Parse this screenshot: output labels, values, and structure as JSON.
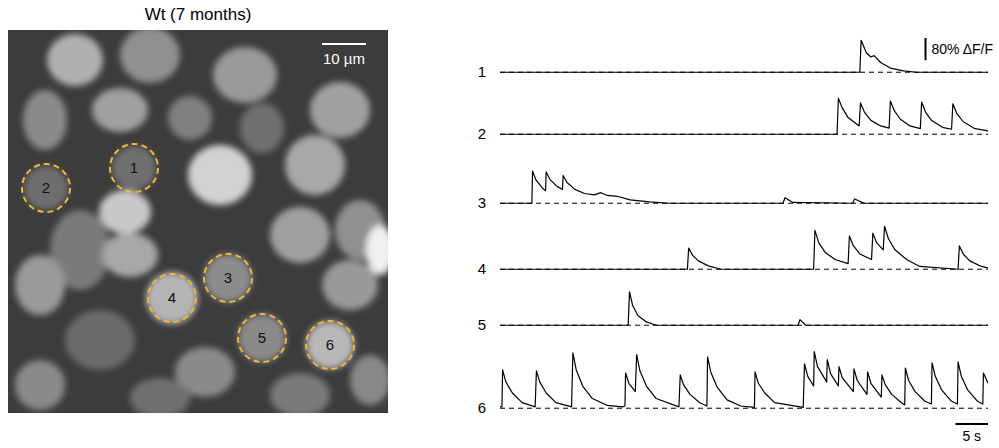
{
  "image": {
    "title": "Wt (7 months)",
    "scale_bar_label": "10 µm",
    "rois": [
      {
        "label": "1"
      },
      {
        "label": "2"
      },
      {
        "label": "3"
      },
      {
        "label": "4"
      },
      {
        "label": "5"
      },
      {
        "label": "6"
      }
    ]
  },
  "chart_data": {
    "type": "line",
    "xlim": [
      0,
      75
    ],
    "ylim": [
      -10,
      210
    ],
    "tick_labels": false,
    "grid": false,
    "baseline": 0,
    "color": "#000000",
    "line_style": "solid",
    "scale_bars": {
      "y": {
        "value": 80,
        "label": "80% ΔF/F"
      },
      "x": {
        "value": 5,
        "label": "5 s"
      }
    },
    "series": [
      {
        "name": "1",
        "x": [
          0,
          55.3,
          55.5,
          56.3,
          57,
          57.5,
          58.5,
          60,
          62,
          64,
          75
        ],
        "values": [
          0,
          0,
          115,
          70,
          55,
          60,
          35,
          15,
          5,
          0,
          0
        ]
      },
      {
        "name": "2",
        "x": [
          0,
          51.8,
          52.0,
          52.6,
          53.5,
          55.2,
          55.4,
          56.0,
          57.0,
          58.5,
          59.8,
          60.0,
          60.6,
          61.5,
          63.0,
          64.6,
          64.8,
          65.4,
          66.3,
          68.0,
          69.4,
          69.6,
          70.2,
          71.2,
          73.0,
          75
        ],
        "values": [
          0,
          0,
          130,
          95,
          60,
          30,
          113,
          80,
          50,
          30,
          22,
          120,
          85,
          55,
          30,
          20,
          116,
          80,
          50,
          25,
          18,
          110,
          75,
          45,
          20,
          12
        ]
      },
      {
        "name": "3",
        "x": [
          0,
          4.9,
          5.0,
          5.5,
          6.5,
          7.0,
          7.1,
          7.7,
          8.8,
          9.6,
          9.7,
          10.3,
          11.5,
          13,
          14.5,
          15.5,
          16.5,
          18,
          20,
          23,
          26,
          43.5,
          43.8,
          45,
          54.2,
          54.5,
          56,
          75
        ],
        "values": [
          0,
          0,
          116,
          85,
          55,
          45,
          113,
          85,
          60,
          50,
          100,
          75,
          50,
          35,
          30,
          38,
          28,
          25,
          12,
          5,
          0,
          0,
          20,
          3,
          0,
          15,
          0,
          0
        ]
      },
      {
        "name": "4",
        "x": [
          0,
          28.8,
          29.0,
          29.6,
          30.5,
          32,
          34,
          48.2,
          48.4,
          49,
          50,
          51.5,
          53.5,
          53.7,
          54.3,
          55.3,
          57.1,
          57.3,
          57.9,
          58.9,
          59.1,
          59.7,
          60.7,
          62.5,
          64.5,
          70.4,
          70.6,
          71.2,
          72.2,
          74,
          75
        ],
        "values": [
          0,
          0,
          76,
          50,
          30,
          12,
          0,
          0,
          140,
          95,
          60,
          35,
          20,
          120,
          85,
          55,
          35,
          130,
          95,
          70,
          155,
          110,
          70,
          35,
          10,
          0,
          84,
          55,
          30,
          10,
          5
        ]
      },
      {
        "name": "5",
        "x": [
          0,
          19.7,
          19.9,
          20.4,
          21.2,
          22.5,
          24,
          45.8,
          46.1,
          47,
          75
        ],
        "values": [
          0,
          0,
          120,
          70,
          35,
          12,
          0,
          0,
          20,
          0,
          0
        ]
      },
      {
        "name": "6",
        "x": [
          0,
          0.3,
          0.4,
          0.9,
          1.9,
          3.4,
          5.4,
          5.6,
          6.1,
          7.1,
          8.6,
          11.0,
          11.2,
          11.7,
          12.7,
          14.2,
          16.5,
          18.8,
          19.2,
          19.3,
          19.8,
          20.8,
          21.0,
          21.5,
          22.5,
          24.0,
          27.5,
          27.7,
          28.2,
          29.2,
          30.7,
          31.8,
          31.9,
          32.4,
          33.4,
          34.9,
          37,
          39.1,
          39.2,
          39.7,
          40.7,
          42.2,
          46.6,
          46.8,
          47.3,
          48.2,
          48.3,
          48.8,
          50.2,
          50.3,
          50.8,
          52.0,
          52.1,
          52.6,
          54.3,
          54.4,
          54.9,
          56.4,
          56.5,
          57.0,
          58.6,
          58.7,
          59.2,
          60.2,
          61.7,
          62.2,
          62.3,
          62.8,
          63.8,
          65.3,
          66.3,
          66.4,
          66.9,
          67.9,
          69.4,
          70.3,
          70.4,
          70.9,
          71.9,
          73.4,
          74.2,
          74.3,
          75
        ],
        "values": [
          5,
          5,
          138,
          95,
          55,
          20,
          5,
          135,
          95,
          55,
          20,
          5,
          200,
          140,
          80,
          35,
          10,
          5,
          8,
          127,
          90,
          60,
          193,
          135,
          80,
          35,
          5,
          120,
          85,
          50,
          20,
          8,
          185,
          130,
          75,
          30,
          8,
          3,
          131,
          90,
          55,
          20,
          3,
          160,
          115,
          80,
          204,
          150,
          95,
          175,
          125,
          80,
          150,
          110,
          60,
          142,
          100,
          50,
          131,
          90,
          40,
          120,
          85,
          50,
          20,
          12,
          145,
          100,
          60,
          25,
          15,
          164,
          115,
          65,
          25,
          15,
          167,
          115,
          65,
          25,
          15,
          127,
          90
        ]
      }
    ]
  }
}
